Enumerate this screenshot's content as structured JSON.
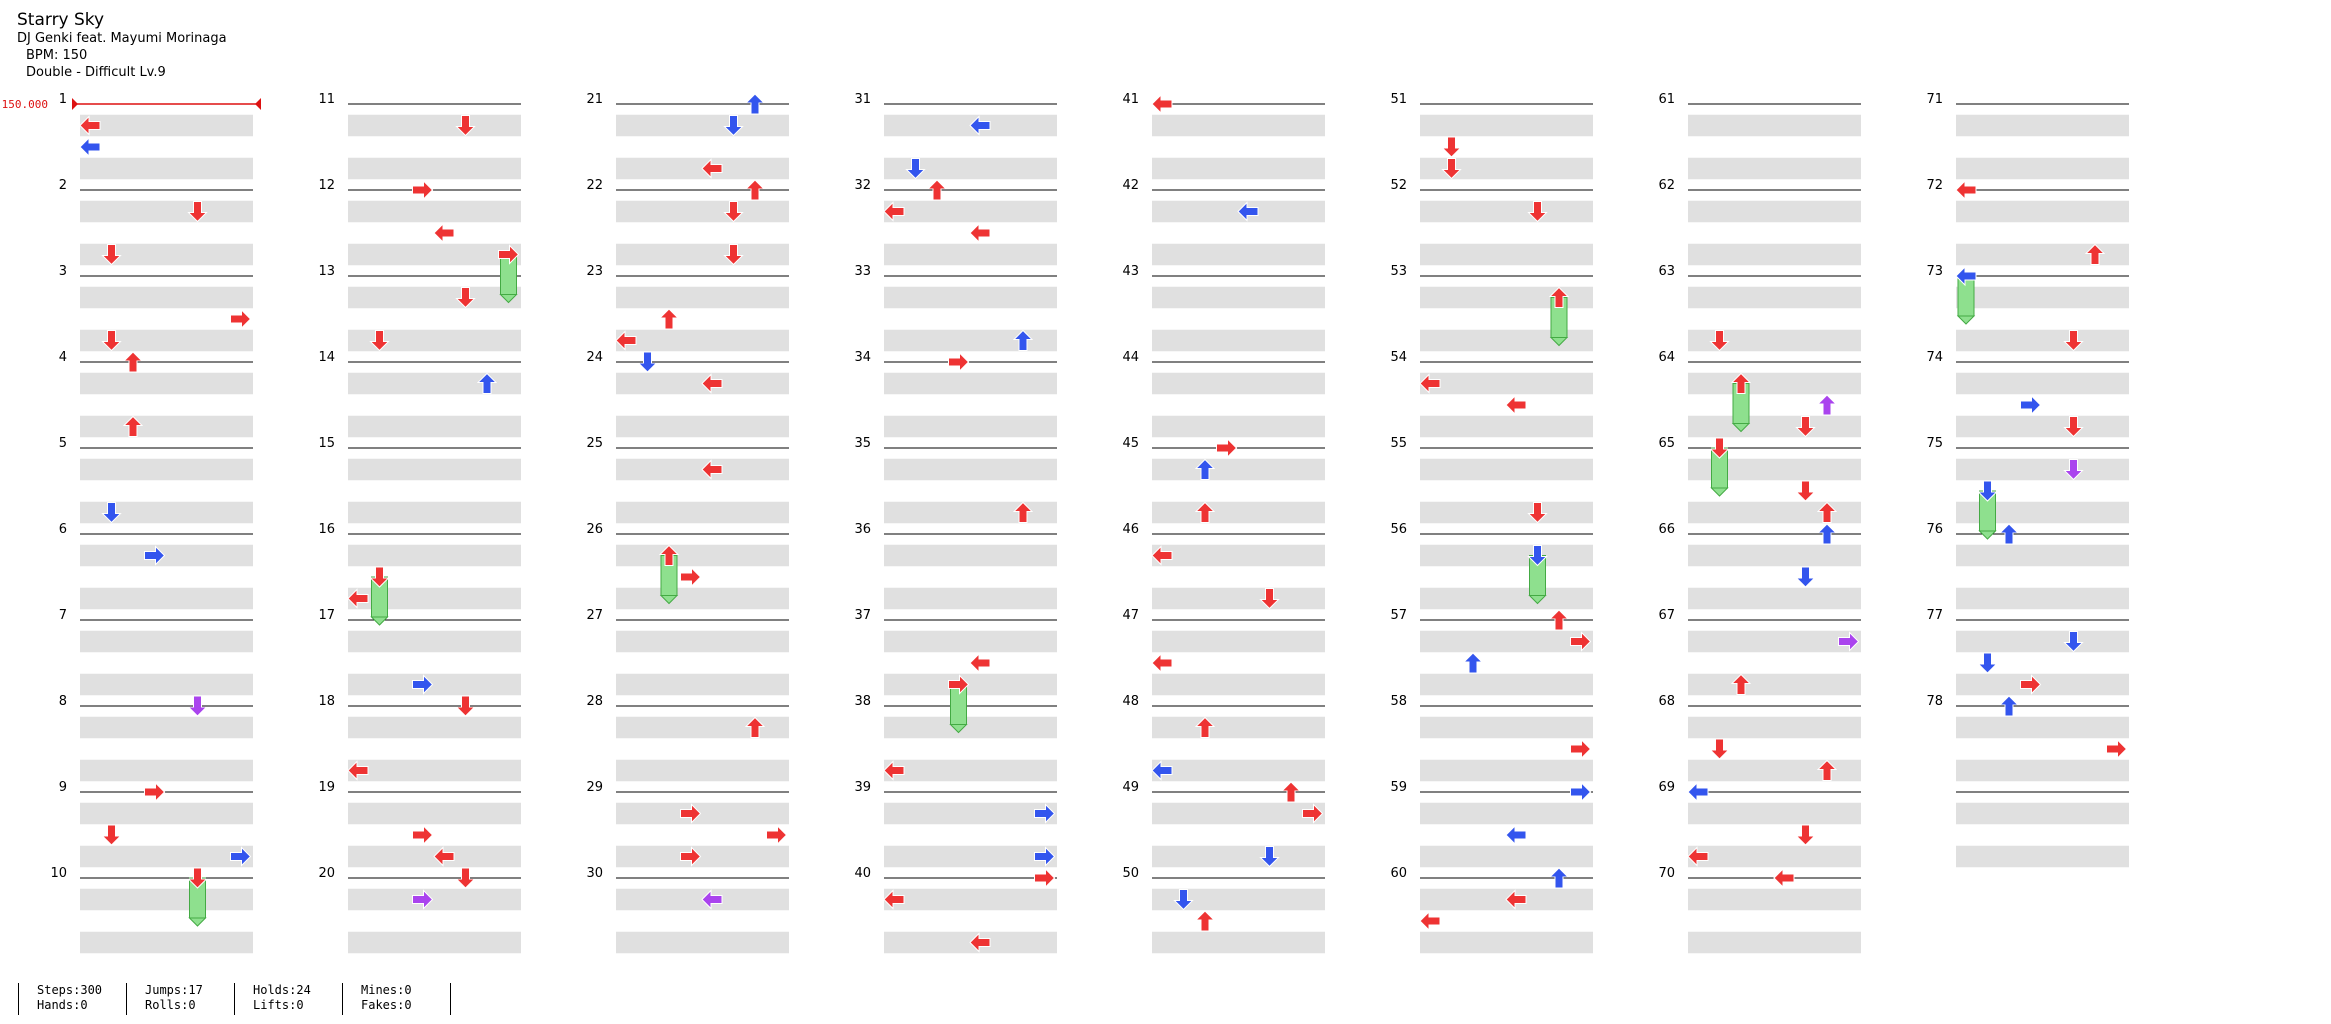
{
  "song": {
    "title": "Starry Sky",
    "artist": "DJ Genki feat. Mayumi Morinaga",
    "bpm_text": "BPM: 150",
    "chart_text": "Double - Difficult  Lv.9"
  },
  "bpm_marker": {
    "label": "150.000",
    "measure": 1
  },
  "measure_count": 78,
  "measures_per_column": 10,
  "colors": {
    "tap_red": "#ee3333",
    "tap_blue": "#3355ee",
    "tap_purple": "#aa44ee",
    "tap_yellow": "#ffdd22",
    "hold_green": "#8ee08e",
    "stripe": "#e0e0e0",
    "bpm_line": "#dd1111"
  },
  "stats": [
    {
      "a": "Steps:300",
      "b": "Hands:0"
    },
    {
      "a": "Jumps:17",
      "b": "Rolls:0"
    },
    {
      "a": "Holds:24",
      "b": "Lifts:0"
    },
    {
      "a": "Mines:0",
      "b": "Fakes:0"
    }
  ]
}
